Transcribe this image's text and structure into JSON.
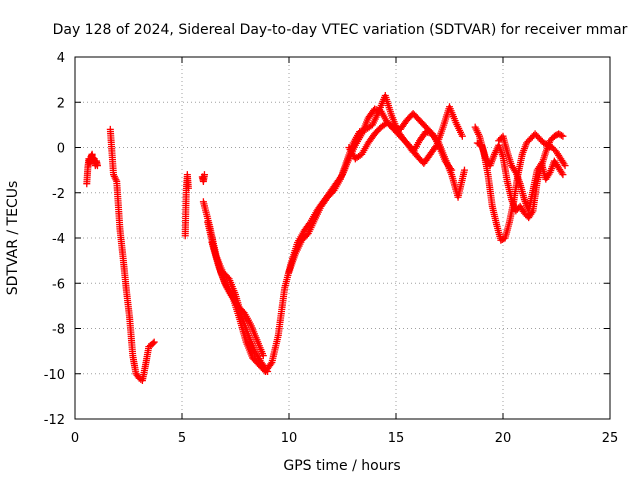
{
  "chart_data": {
    "type": "scatter",
    "title": "Day 128 of 2024, Sidereal Day-to-day VTEC variation (SDTVAR) for receiver mmar",
    "xlabel": "GPS time / hours",
    "ylabel": "SDTVAR / TECUs",
    "xlim": [
      0,
      25
    ],
    "ylim": [
      -12,
      4
    ],
    "xticks": [
      0,
      5,
      10,
      15,
      20,
      25
    ],
    "yticks": [
      -12,
      -10,
      -8,
      -6,
      -4,
      -2,
      0,
      2,
      4
    ],
    "grid": true,
    "marker": "+",
    "color": "#ff0000",
    "series": [
      {
        "name": "segment-1",
        "x": [
          0.55,
          0.6,
          0.65,
          0.7,
          0.75,
          0.8,
          0.85,
          0.9,
          0.95,
          1.0,
          1.05
        ],
        "y": [
          -1.6,
          -0.9,
          -0.5,
          -0.7,
          -0.4,
          -0.3,
          -0.6,
          -0.5,
          -0.8,
          -0.6,
          -0.8
        ]
      },
      {
        "name": "segment-2",
        "x": [
          1.65,
          1.8,
          1.95,
          2.1,
          2.25,
          2.4,
          2.55,
          2.7,
          2.85,
          3.0,
          3.15,
          3.3,
          3.45,
          3.6,
          3.7
        ],
        "y": [
          0.8,
          -1.2,
          -1.5,
          -3.6,
          -4.9,
          -6.3,
          -7.5,
          -9.2,
          -10.0,
          -10.2,
          -10.3,
          -9.6,
          -8.8,
          -8.7,
          -8.6
        ]
      },
      {
        "name": "segment-3",
        "x": [
          5.15,
          5.2,
          5.25,
          5.3
        ],
        "y": [
          -3.9,
          -1.9,
          -1.2,
          -1.8
        ]
      },
      {
        "name": "segment-4",
        "x": [
          5.95,
          6.0,
          6.05
        ],
        "y": [
          -1.3,
          -1.5,
          -1.2
        ]
      },
      {
        "name": "segment-5a",
        "x": [
          6.0,
          6.3,
          6.6,
          6.9,
          7.2,
          7.5,
          7.8,
          8.1,
          8.4,
          8.7,
          9.0
        ],
        "y": [
          -2.4,
          -3.5,
          -4.8,
          -5.5,
          -5.8,
          -6.5,
          -7.5,
          -8.3,
          -9.0,
          -9.5,
          -9.9
        ]
      },
      {
        "name": "segment-5b",
        "x": [
          6.2,
          6.5,
          6.8,
          7.1,
          7.4,
          7.7,
          8.0,
          8.3,
          8.6,
          8.9
        ],
        "y": [
          -3.3,
          -4.5,
          -5.5,
          -6.2,
          -6.7,
          -7.6,
          -8.6,
          -9.3,
          -9.6,
          -9.9
        ]
      },
      {
        "name": "segment-5c",
        "x": [
          6.4,
          6.7,
          7.0,
          7.3,
          7.6,
          7.9,
          8.2,
          8.5,
          8.8
        ],
        "y": [
          -4.2,
          -5.2,
          -6.0,
          -6.5,
          -7.0,
          -7.3,
          -7.8,
          -8.5,
          -9.2
        ]
      },
      {
        "name": "segment-6",
        "x": [
          8.9,
          9.2,
          9.5,
          9.8,
          10.1,
          10.4,
          10.7,
          11.0,
          11.3,
          11.6,
          11.9,
          12.2,
          12.5,
          12.8,
          13.1,
          13.4,
          13.7,
          14.0,
          14.3,
          14.6,
          14.9,
          15.2,
          15.5,
          15.8,
          16.1,
          16.4,
          16.7,
          17.0,
          17.3,
          17.6,
          17.9,
          18.2
        ],
        "y": [
          -9.9,
          -9.5,
          -8.3,
          -6.2,
          -5.1,
          -4.2,
          -3.7,
          -3.3,
          -2.8,
          -2.4,
          -2.0,
          -1.6,
          -1.2,
          -0.5,
          0.1,
          0.6,
          1.3,
          1.7,
          1.6,
          1.1,
          0.9,
          0.8,
          1.2,
          1.5,
          1.2,
          0.9,
          0.6,
          0.2,
          -0.5,
          -1.2,
          -2.2,
          -1.0
        ]
      },
      {
        "name": "segment-7",
        "x": [
          10.0,
          10.3,
          10.6,
          10.9,
          11.2,
          11.5,
          11.8,
          12.1,
          12.4,
          12.7,
          13.0,
          13.3,
          13.6,
          13.9,
          14.2,
          14.5,
          14.8,
          15.1,
          15.4,
          15.7,
          16.0,
          16.3,
          16.6,
          16.9,
          17.2,
          17.5,
          17.8,
          18.1
        ],
        "y": [
          -5.5,
          -4.7,
          -4.1,
          -3.8,
          -3.2,
          -2.6,
          -2.2,
          -1.9,
          -1.4,
          -0.6,
          0.2,
          0.7,
          0.8,
          1.0,
          1.6,
          2.3,
          1.4,
          0.7,
          0.3,
          0.0,
          -0.4,
          -0.7,
          -0.3,
          0.1,
          0.9,
          1.8,
          1.1,
          0.5
        ]
      },
      {
        "name": "segment-8",
        "x": [
          12.8,
          13.1,
          13.4,
          13.7,
          14.0,
          14.3,
          14.6,
          14.9,
          15.2,
          15.5,
          15.8,
          16.1,
          16.4,
          16.7,
          17.0,
          17.3,
          17.6
        ],
        "y": [
          0.0,
          -0.5,
          -0.3,
          0.2,
          0.6,
          0.9,
          1.1,
          0.8,
          0.5,
          0.2,
          -0.2,
          0.3,
          0.7,
          0.6,
          0.1,
          -0.6,
          -1.0
        ]
      },
      {
        "name": "segment-9",
        "x": [
          18.7,
          18.9,
          19.1,
          19.3,
          19.5,
          19.7,
          19.9,
          20.1,
          20.3,
          20.5,
          20.7,
          20.9,
          21.1,
          21.3,
          21.5,
          21.7,
          21.9,
          22.1,
          22.3,
          22.5,
          22.7,
          22.9
        ],
        "y": [
          0.9,
          0.5,
          -0.2,
          -1.2,
          -2.6,
          -3.4,
          -4.1,
          -4.0,
          -3.3,
          -2.4,
          -1.2,
          -0.3,
          0.2,
          0.4,
          0.6,
          0.4,
          0.2,
          0.1,
          0.0,
          -0.2,
          -0.5,
          -0.8
        ]
      },
      {
        "name": "segment-10",
        "x": [
          18.8,
          19.0,
          19.2,
          19.4,
          19.6,
          19.8,
          20.0,
          20.2,
          20.4,
          20.6,
          20.8,
          21.0,
          21.2,
          21.4,
          21.6,
          21.8,
          22.0,
          22.2,
          22.4,
          22.6,
          22.8
        ],
        "y": [
          0.2,
          0.1,
          -0.5,
          -0.8,
          -0.3,
          0.1,
          -0.4,
          -1.5,
          -2.3,
          -2.8,
          -2.6,
          -2.9,
          -3.1,
          -2.8,
          -1.5,
          -0.8,
          -0.2,
          0.3,
          0.5,
          0.6,
          0.5
        ]
      },
      {
        "name": "segment-11",
        "x": [
          19.8,
          20.0,
          20.2,
          20.4,
          20.6,
          20.8,
          21.0,
          21.2,
          21.4,
          21.6,
          21.8,
          22.0,
          22.2,
          22.4,
          22.6,
          22.8
        ],
        "y": [
          0.3,
          0.5,
          -0.2,
          -0.8,
          -1.1,
          -1.6,
          -2.3,
          -2.8,
          -1.9,
          -1.0,
          -0.7,
          -1.4,
          -1.1,
          -0.6,
          -0.9,
          -1.2
        ]
      }
    ]
  }
}
